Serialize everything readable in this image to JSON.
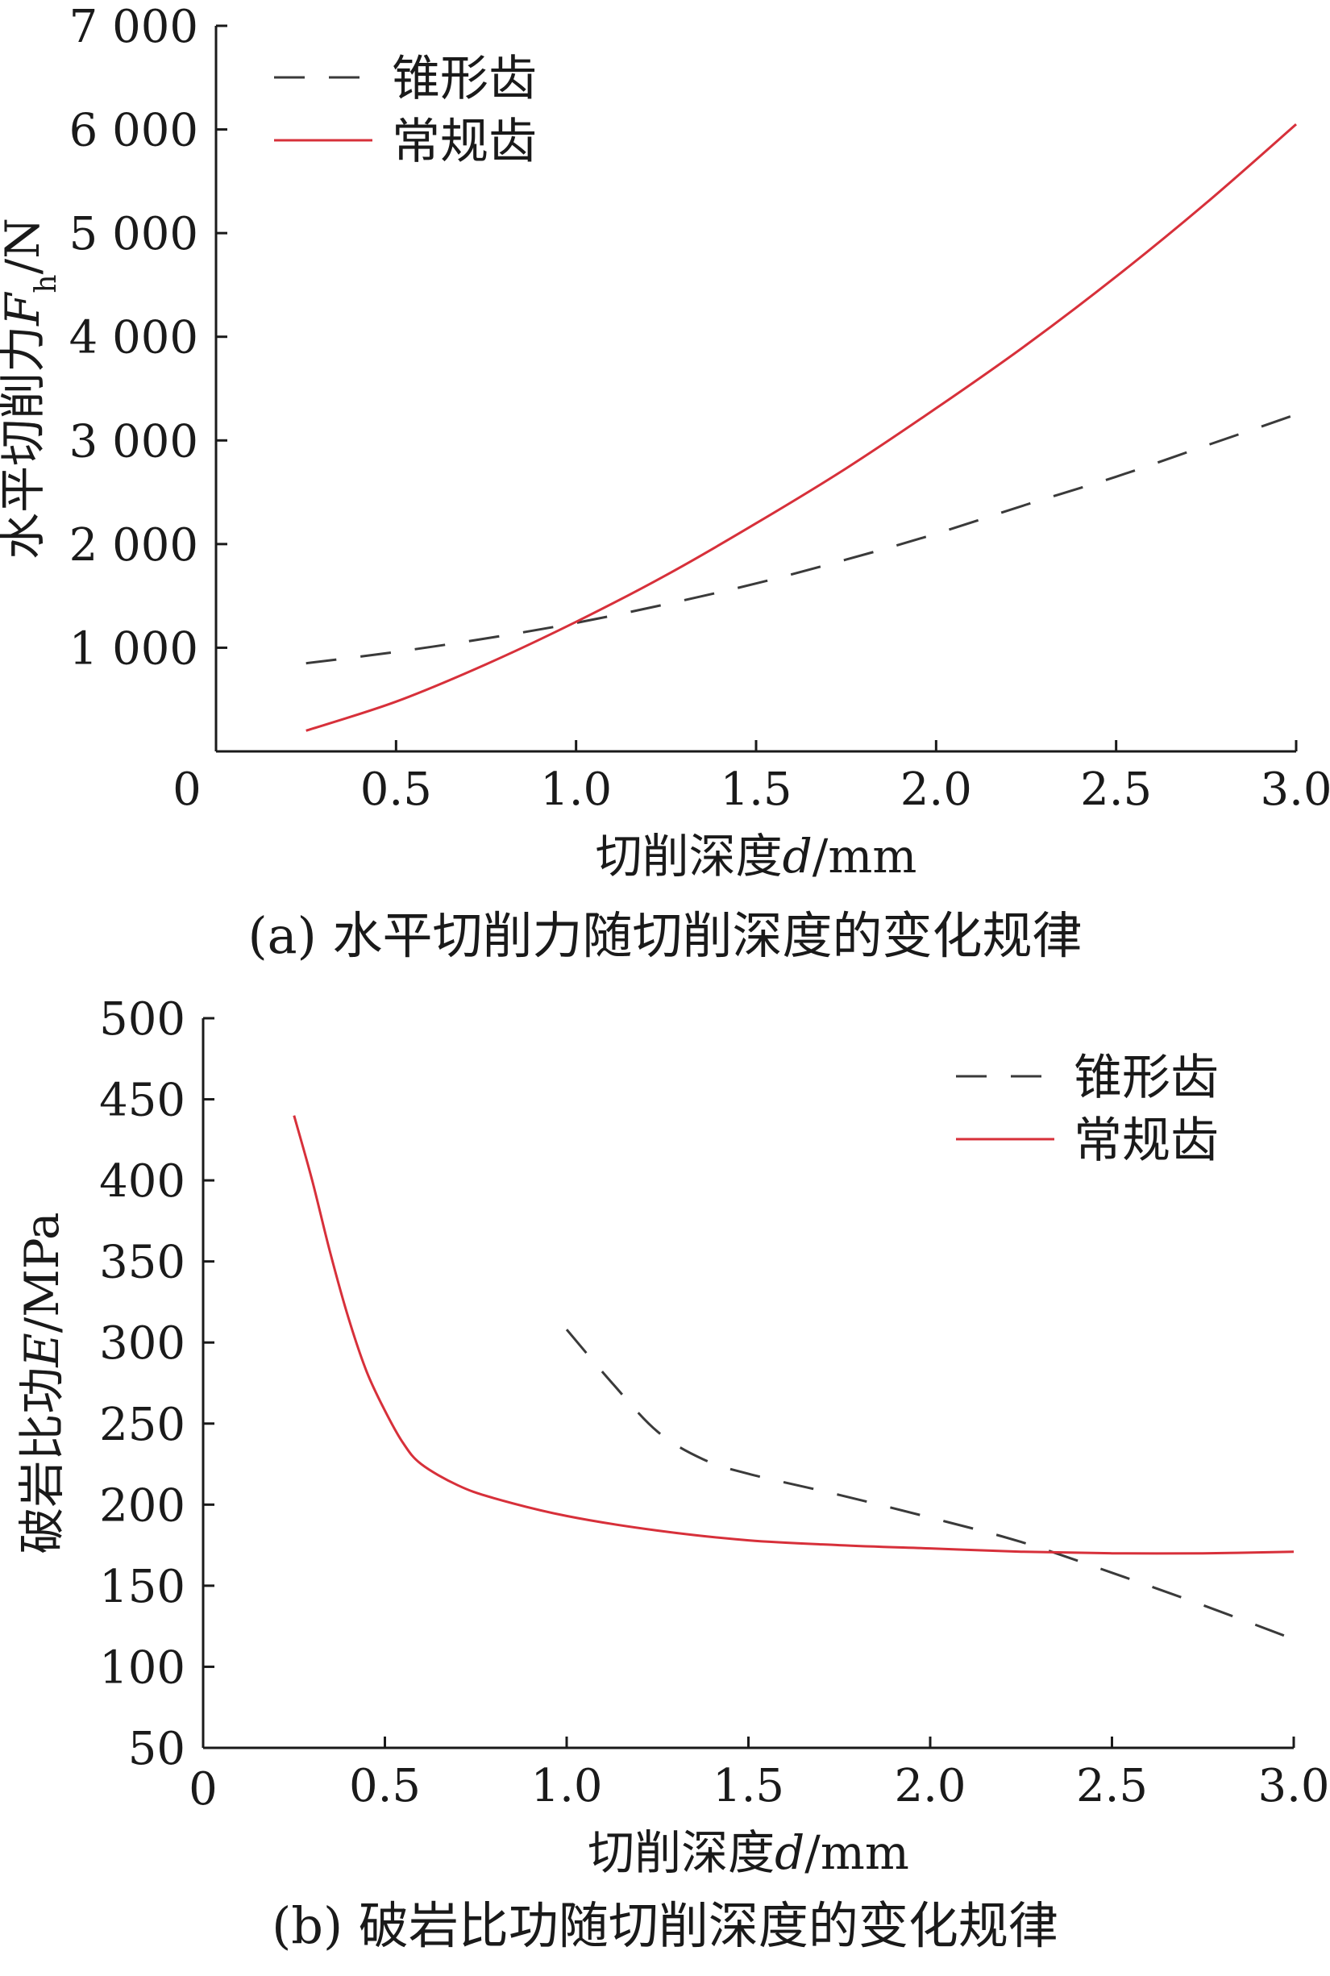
{
  "colors": {
    "cone": "#3a3a3a",
    "regular": "#d7303a",
    "axis": "#1a1a1a"
  },
  "chart_data": [
    {
      "type": "line",
      "caption": "(a)  水平切削力随切削深度的变化规律",
      "ylabel": {
        "main": "水平切削力",
        "symbol": "F",
        "sub": "h",
        "unit": "/N"
      },
      "xlabel": {
        "main": "切削深度",
        "symbol": "d",
        "unit": "/mm"
      },
      "xlim": [
        0,
        3.0
      ],
      "ylim": [
        0,
        7000
      ],
      "x_ticks": [
        0.5,
        1.0,
        1.5,
        2.0,
        2.5,
        3.0
      ],
      "x_tick_labels": [
        "0.5",
        "1.0",
        "1.5",
        "2.0",
        "2.5",
        "3.0"
      ],
      "y_ticks": [
        1000,
        2000,
        3000,
        4000,
        5000,
        6000,
        7000
      ],
      "y_tick_labels": [
        "1 000",
        "2 000",
        "3 000",
        "4 000",
        "5 000",
        "6 000",
        "7 000"
      ],
      "origin_label": "0",
      "legend_position": "top-left",
      "series": [
        {
          "name": "锥形齿",
          "style": "dashed",
          "color": "#3a3a3a",
          "x": [
            0.25,
            0.5,
            0.75,
            1.0,
            1.25,
            1.5,
            1.75,
            2.0,
            2.25,
            2.5,
            2.75,
            3.0
          ],
          "y": [
            850,
            960,
            1090,
            1240,
            1420,
            1620,
            1850,
            2100,
            2380,
            2650,
            2950,
            3250
          ]
        },
        {
          "name": "常规齿",
          "style": "solid",
          "color": "#d7303a",
          "x": [
            0.25,
            0.5,
            0.75,
            1.0,
            1.25,
            1.5,
            1.75,
            2.0,
            2.25,
            2.5,
            2.75,
            3.0
          ],
          "y": [
            200,
            480,
            840,
            1250,
            1700,
            2200,
            2730,
            3310,
            3920,
            4580,
            5290,
            6050
          ]
        }
      ]
    },
    {
      "type": "line",
      "caption": "(b)  破岩比功随切削深度的变化规律",
      "ylabel": {
        "main": "破岩比功",
        "symbol": "E",
        "sub": "",
        "unit": "/MPa"
      },
      "xlabel": {
        "main": "切削深度",
        "symbol": "d",
        "unit": "/mm"
      },
      "xlim": [
        0,
        3.0
      ],
      "ylim": [
        50,
        500
      ],
      "x_ticks": [
        0.5,
        1.0,
        1.5,
        2.0,
        2.5,
        3.0
      ],
      "x_tick_labels": [
        "0.5",
        "1.0",
        "1.5",
        "2.0",
        "2.5",
        "3.0"
      ],
      "y_ticks": [
        50,
        100,
        150,
        200,
        250,
        300,
        350,
        400,
        450,
        500
      ],
      "y_tick_labels": [
        "50",
        "100",
        "150",
        "200",
        "250",
        "300",
        "350",
        "400",
        "450",
        "500"
      ],
      "origin_label": "0",
      "legend_position": "top-right",
      "series": [
        {
          "name": "锥形齿",
          "style": "dashed",
          "color": "#3a3a3a",
          "x": [
            1.0,
            1.125,
            1.25,
            1.375,
            1.5,
            1.75,
            2.0,
            2.25,
            2.5,
            2.75,
            3.0
          ],
          "y": [
            308,
            275,
            245,
            228,
            219,
            206,
            192,
            177,
            158,
            138,
            117
          ]
        },
        {
          "name": "常规齿",
          "style": "solid",
          "color": "#d7303a",
          "x": [
            0.25,
            0.3,
            0.35,
            0.4,
            0.45,
            0.5,
            0.55,
            0.6,
            0.7,
            0.8,
            1.0,
            1.25,
            1.5,
            1.75,
            2.0,
            2.25,
            2.5,
            2.75,
            3.0
          ],
          "y": [
            440,
            400,
            355,
            315,
            282,
            258,
            238,
            225,
            212,
            204,
            193,
            184,
            178,
            175,
            173,
            171,
            170,
            170,
            171
          ]
        }
      ]
    }
  ]
}
